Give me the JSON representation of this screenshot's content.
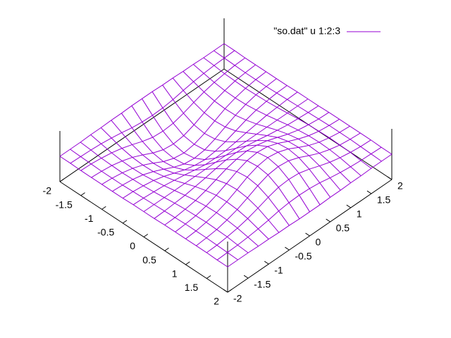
{
  "chart_data": {
    "type": "surface",
    "series": [
      {
        "name": "\"so.dat\" u 1:2:3",
        "color": "#9400d3"
      }
    ],
    "x": [
      -2,
      -1.75,
      -1.5,
      -1.25,
      -1,
      -0.75,
      -0.5,
      -0.25,
      0,
      0.25,
      0.5,
      0.75,
      1,
      1.25,
      1.5,
      1.75,
      2
    ],
    "y": [
      -2,
      -1.75,
      -1.5,
      -1.25,
      -1,
      -0.75,
      -0.5,
      -0.25,
      0,
      0.25,
      0.5,
      0.75,
      1,
      1.25,
      1.5,
      1.75,
      2
    ],
    "z": [
      [
        0,
        0,
        -0.01,
        -0.01,
        -0.01,
        -0.01,
        -0.01,
        0,
        0,
        0,
        0.01,
        0.01,
        0.01,
        0.01,
        0.01,
        0,
        0
      ],
      [
        0,
        -0.01,
        -0.02,
        -0.03,
        -0.03,
        -0.03,
        -0.02,
        -0.01,
        0,
        0.01,
        0.02,
        0.03,
        0.03,
        0.03,
        0.02,
        0.01,
        0
      ],
      [
        0,
        -0.02,
        -0.05,
        -0.06,
        -0.07,
        -0.06,
        -0.05,
        -0.03,
        0,
        0.03,
        0.05,
        0.06,
        0.07,
        0.06,
        0.05,
        0.02,
        0
      ],
      [
        0.01,
        -0.04,
        -0.09,
        -0.12,
        -0.13,
        -0.12,
        -0.09,
        -0.05,
        0,
        0.05,
        0.09,
        0.12,
        0.13,
        0.12,
        0.09,
        0.04,
        -0.01
      ],
      [
        0.01,
        -0.07,
        -0.15,
        -0.2,
        -0.22,
        -0.21,
        -0.16,
        -0.09,
        0,
        0.09,
        0.16,
        0.21,
        0.22,
        0.2,
        0.15,
        0.07,
        -0.01
      ],
      [
        0.02,
        -0.11,
        -0.23,
        -0.31,
        -0.34,
        -0.32,
        -0.25,
        -0.13,
        0,
        0.13,
        0.25,
        0.32,
        0.34,
        0.31,
        0.23,
        0.11,
        -0.02
      ],
      [
        0.02,
        -0.16,
        -0.32,
        -0.43,
        -0.47,
        -0.44,
        -0.34,
        -0.18,
        0,
        0.18,
        0.34,
        0.44,
        0.47,
        0.43,
        0.32,
        0.16,
        -0.02
      ],
      [
        0.03,
        -0.19,
        -0.39,
        -0.52,
        -0.56,
        -0.53,
        -0.4,
        -0.22,
        0,
        0.22,
        0.4,
        0.53,
        0.56,
        0.52,
        0.39,
        0.19,
        -0.03
      ],
      [
        0.03,
        -0.2,
        -0.41,
        -0.55,
        -0.6,
        -0.56,
        -0.43,
        -0.23,
        0,
        0.23,
        0.43,
        0.56,
        0.6,
        0.55,
        0.41,
        0.2,
        -0.03
      ],
      [
        0.03,
        -0.19,
        -0.39,
        -0.52,
        -0.56,
        -0.53,
        -0.4,
        -0.22,
        0,
        0.22,
        0.4,
        0.53,
        0.56,
        0.52,
        0.39,
        0.19,
        -0.03
      ],
      [
        0.02,
        -0.16,
        -0.32,
        -0.43,
        -0.47,
        -0.44,
        -0.34,
        -0.18,
        0,
        0.18,
        0.34,
        0.44,
        0.47,
        0.43,
        0.32,
        0.16,
        -0.02
      ],
      [
        0.02,
        -0.11,
        -0.23,
        -0.31,
        -0.34,
        -0.32,
        -0.25,
        -0.13,
        0,
        0.13,
        0.25,
        0.32,
        0.34,
        0.31,
        0.23,
        0.11,
        -0.02
      ],
      [
        0.01,
        -0.07,
        -0.15,
        -0.2,
        -0.22,
        -0.21,
        -0.16,
        -0.09,
        0,
        0.09,
        0.16,
        0.21,
        0.22,
        0.2,
        0.15,
        0.07,
        -0.01
      ],
      [
        0.01,
        -0.04,
        -0.09,
        -0.12,
        -0.13,
        -0.12,
        -0.09,
        -0.05,
        0,
        0.05,
        0.09,
        0.12,
        0.13,
        0.12,
        0.09,
        0.04,
        -0.01
      ],
      [
        0,
        -0.02,
        -0.05,
        -0.06,
        -0.07,
        -0.06,
        -0.05,
        -0.03,
        0,
        0.03,
        0.05,
        0.06,
        0.07,
        0.06,
        0.05,
        0.02,
        0
      ],
      [
        0,
        -0.01,
        -0.02,
        -0.03,
        -0.03,
        -0.03,
        -0.02,
        -0.01,
        0,
        0.01,
        0.02,
        0.03,
        0.03,
        0.03,
        0.02,
        0.01,
        0
      ],
      [
        0,
        0,
        -0.01,
        -0.01,
        -0.01,
        -0.01,
        -0.01,
        0,
        0,
        0,
        0.01,
        0.01,
        0.01,
        0.01,
        0.01,
        0,
        0
      ]
    ],
    "xlim": [
      -2,
      2
    ],
    "ylim": [
      -2,
      2
    ],
    "zlim": [
      -0.6,
      0.6
    ],
    "xticks": [
      -2,
      -1.5,
      -1,
      -0.5,
      0,
      0.5,
      1,
      1.5,
      2
    ],
    "yticks": [
      -2,
      -1.5,
      -1,
      -0.5,
      0,
      0.5,
      1,
      1.5,
      2
    ],
    "legend": "upper right"
  }
}
